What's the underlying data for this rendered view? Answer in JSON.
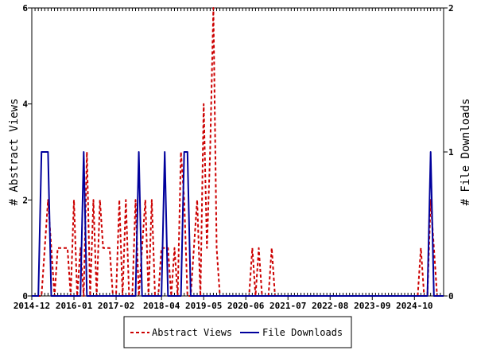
{
  "chart_data": {
    "type": "line",
    "ylabel": "# Abstract Views",
    "y2label": "# File Downloads",
    "ylim": [
      0,
      6
    ],
    "y2lim": [
      0,
      2
    ],
    "yticks": [
      "0",
      "2",
      "4",
      "6"
    ],
    "y2ticks": [
      "0",
      "1",
      "2"
    ],
    "xlim": [
      "2014-12",
      "2025-07"
    ],
    "xticks": [
      "2014-12",
      "2016-01",
      "2017-02",
      "2018-04",
      "2019-05",
      "2020-06",
      "2021-07",
      "2022-08",
      "2023-09",
      "2024-10"
    ],
    "legend_position": "bottom",
    "series": [
      {
        "name": "Abstract Views",
        "axis": "left",
        "color": "#cc0000",
        "style": "dashed",
        "points": [
          [
            "2014-12",
            0
          ],
          [
            "2015-03",
            0
          ],
          [
            "2015-04",
            1
          ],
          [
            "2015-05",
            2
          ],
          [
            "2015-06",
            1
          ],
          [
            "2015-07",
            0
          ],
          [
            "2015-08",
            1
          ],
          [
            "2015-09",
            1
          ],
          [
            "2015-10",
            1
          ],
          [
            "2015-11",
            1
          ],
          [
            "2015-12",
            0
          ],
          [
            "2016-01",
            2
          ],
          [
            "2016-02",
            0
          ],
          [
            "2016-03",
            1
          ],
          [
            "2016-04",
            0
          ],
          [
            "2016-05",
            3
          ],
          [
            "2016-06",
            0
          ],
          [
            "2016-07",
            2
          ],
          [
            "2016-08",
            0
          ],
          [
            "2016-09",
            2
          ],
          [
            "2016-10",
            1
          ],
          [
            "2016-11",
            1
          ],
          [
            "2016-12",
            1
          ],
          [
            "2017-01",
            0
          ],
          [
            "2017-02",
            0
          ],
          [
            "2017-03",
            2
          ],
          [
            "2017-04",
            0
          ],
          [
            "2017-05",
            2
          ],
          [
            "2017-06",
            0
          ],
          [
            "2017-07",
            0
          ],
          [
            "2017-08",
            2
          ],
          [
            "2017-09",
            0
          ],
          [
            "2017-10",
            1
          ],
          [
            "2017-11",
            2
          ],
          [
            "2017-12",
            0
          ],
          [
            "2018-01",
            2
          ],
          [
            "2018-02",
            0
          ],
          [
            "2018-03",
            0
          ],
          [
            "2018-04",
            1
          ],
          [
            "2018-05",
            1
          ],
          [
            "2018-06",
            1
          ],
          [
            "2018-07",
            0
          ],
          [
            "2018-08",
            1
          ],
          [
            "2018-09",
            0
          ],
          [
            "2018-10",
            3
          ],
          [
            "2018-11",
            2
          ],
          [
            "2018-12",
            0
          ],
          [
            "2019-01",
            0
          ],
          [
            "2019-02",
            1
          ],
          [
            "2019-03",
            2
          ],
          [
            "2019-04",
            0
          ],
          [
            "2019-05",
            4
          ],
          [
            "2019-06",
            1
          ],
          [
            "2019-07",
            3
          ],
          [
            "2019-08",
            6
          ],
          [
            "2019-09",
            1
          ],
          [
            "2019-10",
            0
          ],
          [
            "2019-11",
            0
          ],
          [
            "2020-06",
            0
          ],
          [
            "2020-07",
            0
          ],
          [
            "2020-08",
            1
          ],
          [
            "2020-09",
            0
          ],
          [
            "2020-10",
            1
          ],
          [
            "2020-11",
            0
          ],
          [
            "2021-01",
            0
          ],
          [
            "2021-02",
            1
          ],
          [
            "2021-03",
            0
          ],
          [
            "2021-04",
            0
          ],
          [
            "2024-10",
            0
          ],
          [
            "2024-11",
            0
          ],
          [
            "2024-12",
            1
          ],
          [
            "2025-01",
            0
          ],
          [
            "2025-02",
            0
          ],
          [
            "2025-03",
            2
          ],
          [
            "2025-04",
            1
          ],
          [
            "2025-05",
            0
          ],
          [
            "2025-07",
            0
          ]
        ]
      },
      {
        "name": "File Downloads",
        "axis": "right",
        "color": "#00009c",
        "style": "solid",
        "points": [
          [
            "2014-12",
            0
          ],
          [
            "2015-02",
            0
          ],
          [
            "2015-03",
            1
          ],
          [
            "2015-04",
            1
          ],
          [
            "2015-05",
            1
          ],
          [
            "2015-06",
            0
          ],
          [
            "2016-03",
            0
          ],
          [
            "2016-04",
            1
          ],
          [
            "2016-05",
            0
          ],
          [
            "2016-06",
            0
          ],
          [
            "2017-08",
            0
          ],
          [
            "2017-09",
            1
          ],
          [
            "2017-10",
            0
          ],
          [
            "2018-04",
            0
          ],
          [
            "2018-05",
            1
          ],
          [
            "2018-06",
            0
          ],
          [
            "2018-10",
            0
          ],
          [
            "2018-11",
            1
          ],
          [
            "2018-12",
            1
          ],
          [
            "2019-01",
            0
          ],
          [
            "2025-02",
            0
          ],
          [
            "2025-03",
            1
          ],
          [
            "2025-04",
            0
          ],
          [
            "2025-07",
            0
          ]
        ]
      }
    ]
  }
}
